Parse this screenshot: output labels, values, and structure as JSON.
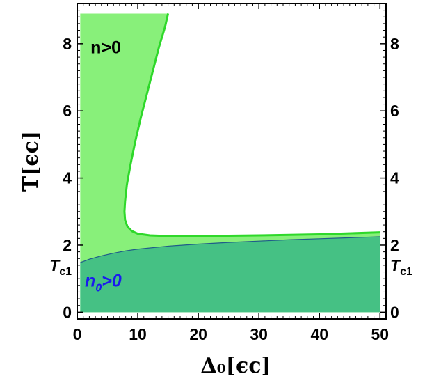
{
  "chart_data": {
    "type": "area",
    "xlabel": "Δ₀[ϵc]",
    "ylabel": "T[ϵc]",
    "xlim": [
      0,
      51
    ],
    "ylim": [
      -0.2,
      9.2
    ],
    "xticks": [
      0,
      10,
      20,
      30,
      40,
      50
    ],
    "yticks": [
      0,
      2,
      4,
      6,
      8
    ],
    "extra_ytick": {
      "label": "T",
      "sub": "c1",
      "value": 1.48
    },
    "grid": false,
    "colors": {
      "normal_region": "#88f07a",
      "normal_boundary": "#2ed82a",
      "condensate_region": "#45c184",
      "condensate_boundary": "#1f5c8a",
      "label_normal": "#000000",
      "label_condensate": "#1a1aee"
    },
    "series": [
      {
        "name": "n>0",
        "x": [
          0.5,
          15,
          14.5,
          13.5,
          12.5,
          11.5,
          10.5,
          9.6,
          8.8,
          8.2,
          7.9,
          7.8,
          7.9,
          8.3,
          9,
          10,
          12,
          15,
          20,
          30,
          40,
          50
        ],
        "y": [
          8.9,
          8.9,
          8.5,
          7.9,
          7.2,
          6.5,
          5.8,
          5.1,
          4.4,
          3.8,
          3.3,
          3.0,
          2.75,
          2.55,
          2.42,
          2.34,
          2.29,
          2.27,
          2.27,
          2.29,
          2.32,
          2.38
        ],
        "boundary": "upper"
      },
      {
        "name": "n₀>0",
        "x": [
          0.5,
          2,
          4,
          6,
          8,
          10,
          15,
          20,
          25,
          30,
          35,
          40,
          45,
          50
        ],
        "y": [
          1.48,
          1.58,
          1.68,
          1.76,
          1.83,
          1.88,
          1.97,
          2.03,
          2.08,
          2.12,
          2.16,
          2.19,
          2.22,
          2.25
        ],
        "boundary": "upper"
      }
    ],
    "annotations": [
      {
        "text": "n>0",
        "x": 4.5,
        "y": 7.9
      },
      {
        "text": "n",
        "sub": "0",
        "rest": ">0",
        "x": 1.5,
        "y": 0.95
      }
    ]
  }
}
